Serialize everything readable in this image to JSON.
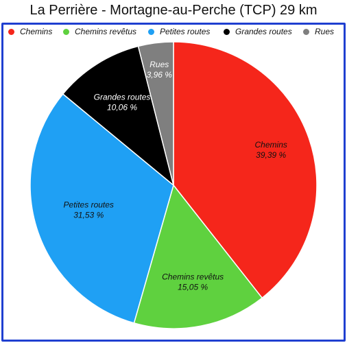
{
  "chart_data": {
    "type": "pie",
    "title": "La Perrière - Mortagne-au-Perche (TCP) 29 km",
    "legend_position": "top",
    "categories": [
      "Chemins",
      "Chemins revêtus",
      "Petites routes",
      "Grandes routes",
      "Rues"
    ],
    "values": [
      39.39,
      15.05,
      31.53,
      10.06,
      3.96
    ],
    "value_labels": [
      "39,39 %",
      "15,05 %",
      "31,53 %",
      "10,06 %",
      "3,96 %"
    ],
    "colors": [
      "#f5261b",
      "#5fd13f",
      "#1fa0f4",
      "#000000",
      "#7f7f7f"
    ],
    "label_colors": [
      "#111111",
      "#111111",
      "#111111",
      "#ffffff",
      "#ffffff"
    ],
    "start_angle_deg": 0,
    "direction": "clockwise"
  }
}
